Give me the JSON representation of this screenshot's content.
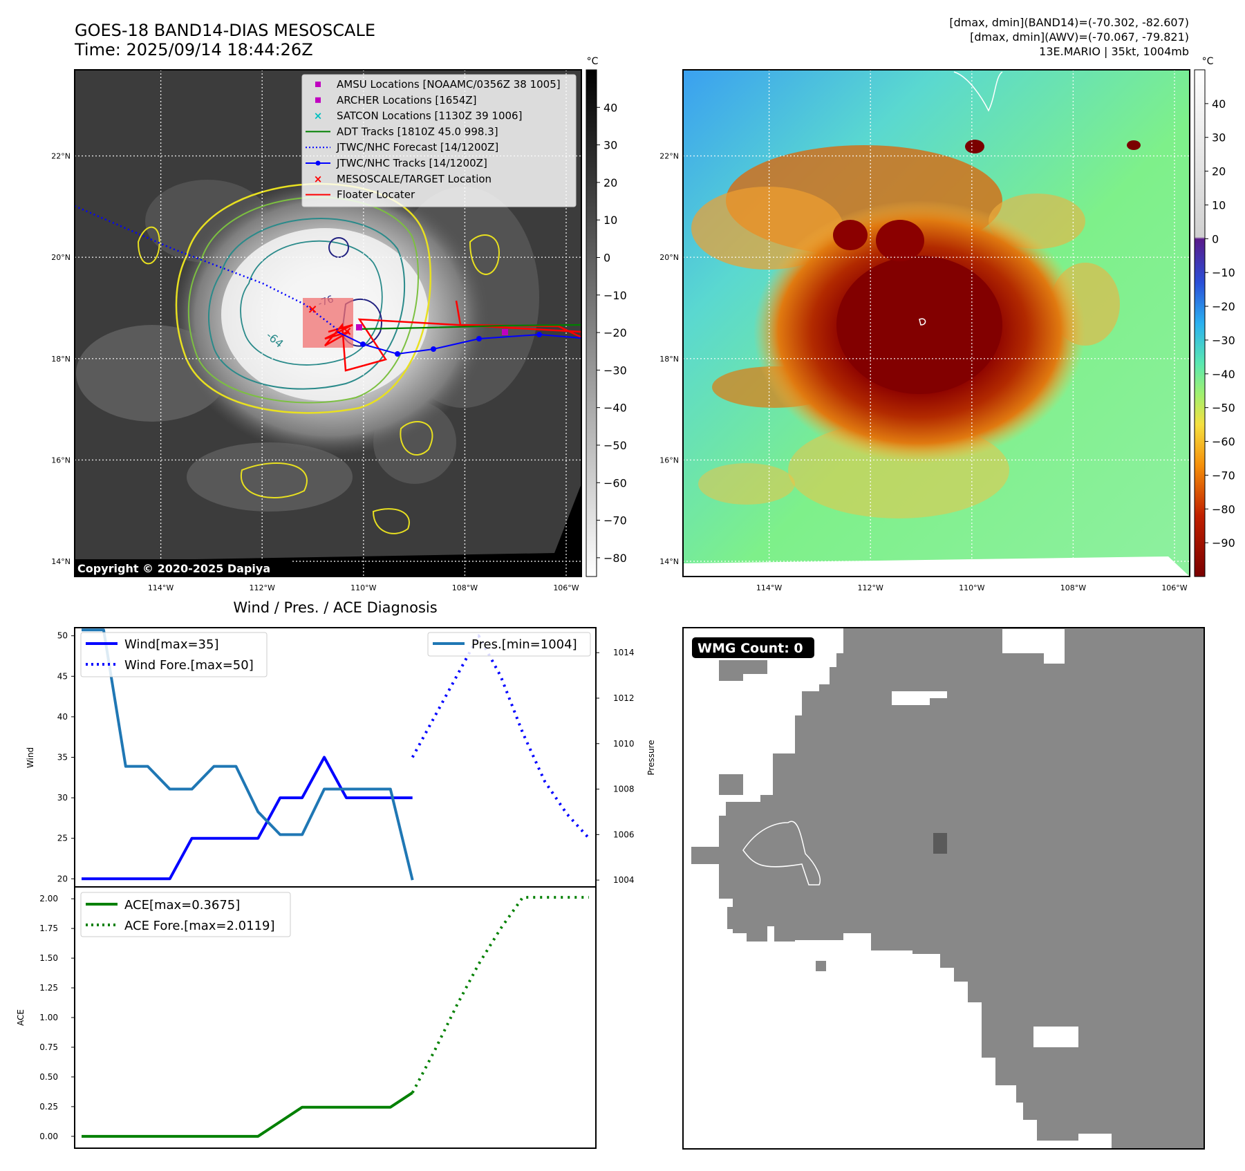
{
  "header": {
    "title": "GOES-18 BAND14-DIAS MESOSCALE",
    "time": "Time: 2025/09/14 18:44:26Z",
    "info_band14": "[dmax, dmin](BAND14)=(-70.302, -82.607)",
    "info_awv": "[dmax, dmin](AWV)=(-70.067, -79.821)",
    "info_storm": "13E.MARIO | 35kt, 1004mb"
  },
  "map_axes": {
    "lat_labels": [
      "22°N",
      "20°N",
      "18°N",
      "16°N",
      "14°N"
    ],
    "lat_values": [
      22,
      20,
      18,
      16,
      14
    ],
    "lon_labels": [
      "114°W",
      "112°W",
      "110°W",
      "108°W",
      "106°W"
    ],
    "lon_values": [
      -114,
      -112,
      -110,
      -108,
      -106
    ],
    "lon_range": [
      -115.7,
      -105.7
    ],
    "lat_range": [
      13.7,
      23.7
    ]
  },
  "ir_panel": {
    "colorbar_unit": "°C",
    "colorbar_ticks": [
      "40",
      "30",
      "20",
      "10",
      "0",
      "−10",
      "−20",
      "−30",
      "−40",
      "−50",
      "−60",
      "−70",
      "−80"
    ],
    "colorbar_values": [
      40,
      30,
      20,
      10,
      0,
      -10,
      -20,
      -30,
      -40,
      -50,
      -60,
      -70,
      -80
    ],
    "colorbar_range": [
      -85,
      50
    ],
    "copyright": "Copyright © 2020-2025 Dapiya",
    "contour_labels": [
      "-64",
      "-76"
    ],
    "legend": [
      {
        "label": "AMSU Locations [NOAAMC/0356Z 38 1005]",
        "color": "#c000c0",
        "marker": "square"
      },
      {
        "label": "ARCHER Locations [1654Z]",
        "color": "#c000c0",
        "marker": "square"
      },
      {
        "label": "SATCON Locations [1130Z 39 1006]",
        "color": "#00bfbf",
        "marker": "x"
      },
      {
        "label": "ADT Tracks [1810Z 45.0 998.3]",
        "color": "#008000",
        "marker": "line"
      },
      {
        "label": "JTWC/NHC Forecast [14/1200Z]",
        "color": "#0000ff",
        "marker": "dotted"
      },
      {
        "label": "JTWC/NHC Tracks [14/1200Z]",
        "color": "#0000ff",
        "marker": "line-dot"
      },
      {
        "label": "MESOSCALE/TARGET Location",
        "color": "#ff0000",
        "marker": "x"
      },
      {
        "label": "Floater Locater",
        "color": "#ff0000",
        "marker": "line"
      }
    ]
  },
  "awv_panel": {
    "colorbar_unit": "°C",
    "colorbar_ticks": [
      "40",
      "30",
      "20",
      "10",
      "0",
      "−10",
      "−20",
      "−30",
      "−40",
      "−50",
      "−60",
      "−70",
      "−80",
      "−90"
    ],
    "colorbar_values": [
      40,
      30,
      20,
      10,
      0,
      -10,
      -20,
      -30,
      -40,
      -50,
      -60,
      -70,
      -80,
      -90
    ],
    "colorbar_range": [
      -100,
      50
    ]
  },
  "diagnosis": {
    "title": "Wind / Pres. / ACE Diagnosis",
    "wind_ylabel": "Wind",
    "pressure_ylabel": "Pressure",
    "ace_ylabel": "ACE",
    "wind_ticks": [
      "50",
      "45",
      "40",
      "35",
      "30",
      "25",
      "20"
    ],
    "pressure_ticks": [
      "1014",
      "1012",
      "1010",
      "1008",
      "1006",
      "1004"
    ],
    "ace_ticks": [
      "2.00",
      "1.75",
      "1.50",
      "1.25",
      "1.00",
      "0.75",
      "0.50",
      "0.25",
      "0.00"
    ],
    "legend_wind": "Wind[max=35]",
    "legend_wind_fore": "Wind Fore.[max=50]",
    "legend_pres": "Pres.[min=1004]",
    "legend_ace": "ACE[max=0.3675]",
    "legend_ace_fore": "ACE Fore.[max=2.0119]"
  },
  "wmg_panel": {
    "label": "WMG Count: 0"
  },
  "colors": {
    "wind": "#0000ff",
    "pressure": "#1f77b4",
    "ace": "#008000",
    "track_red": "#ff0000",
    "adt_green": "#008000",
    "wmg_gray": "#888888"
  },
  "chart_data": [
    {
      "type": "line",
      "title": "Wind / Pres. / ACE Diagnosis",
      "ylabel": "Wind",
      "ylim": [
        19,
        51
      ],
      "series": [
        {
          "name": "Wind[max=35]",
          "x": [
            0,
            1,
            2,
            3,
            4,
            5,
            6,
            7,
            8,
            9,
            10,
            11,
            12,
            13,
            14,
            15
          ],
          "values": [
            20,
            20,
            20,
            20,
            20,
            25,
            25,
            25,
            25,
            30,
            30,
            35,
            30,
            30,
            30,
            30
          ]
        },
        {
          "name": "Wind Fore.[max=50]",
          "x": [
            15,
            16,
            17,
            18,
            19,
            20,
            21,
            22,
            23
          ],
          "values": [
            35,
            40,
            45,
            50,
            45,
            38,
            32,
            28,
            25
          ]
        }
      ]
    },
    {
      "type": "line",
      "ylabel": "Pressure",
      "ylim": [
        1003.7,
        1015.1
      ],
      "series": [
        {
          "name": "Pres.[min=1004]",
          "x": [
            0,
            1,
            2,
            3,
            4,
            5,
            6,
            7,
            8,
            9,
            10,
            11,
            12,
            13,
            14,
            15
          ],
          "values": [
            1015,
            1015,
            1009,
            1009,
            1008,
            1008,
            1009,
            1009,
            1007,
            1006,
            1006,
            1008,
            1008,
            1008,
            1008,
            1004
          ]
        }
      ]
    },
    {
      "type": "line",
      "ylabel": "ACE",
      "ylim": [
        -0.1,
        2.1
      ],
      "series": [
        {
          "name": "ACE[max=0.3675]",
          "x": [
            0,
            8,
            10,
            14,
            15
          ],
          "values": [
            0,
            0,
            0.245,
            0.245,
            0.3675
          ]
        },
        {
          "name": "ACE Fore.[max=2.0119]",
          "x": [
            15,
            16,
            17,
            18,
            19,
            20,
            21,
            22,
            23
          ],
          "values": [
            0.3675,
            0.72,
            1.1,
            1.45,
            1.75,
            2.0119,
            2.0119,
            2.0119,
            2.0119
          ]
        }
      ]
    }
  ]
}
